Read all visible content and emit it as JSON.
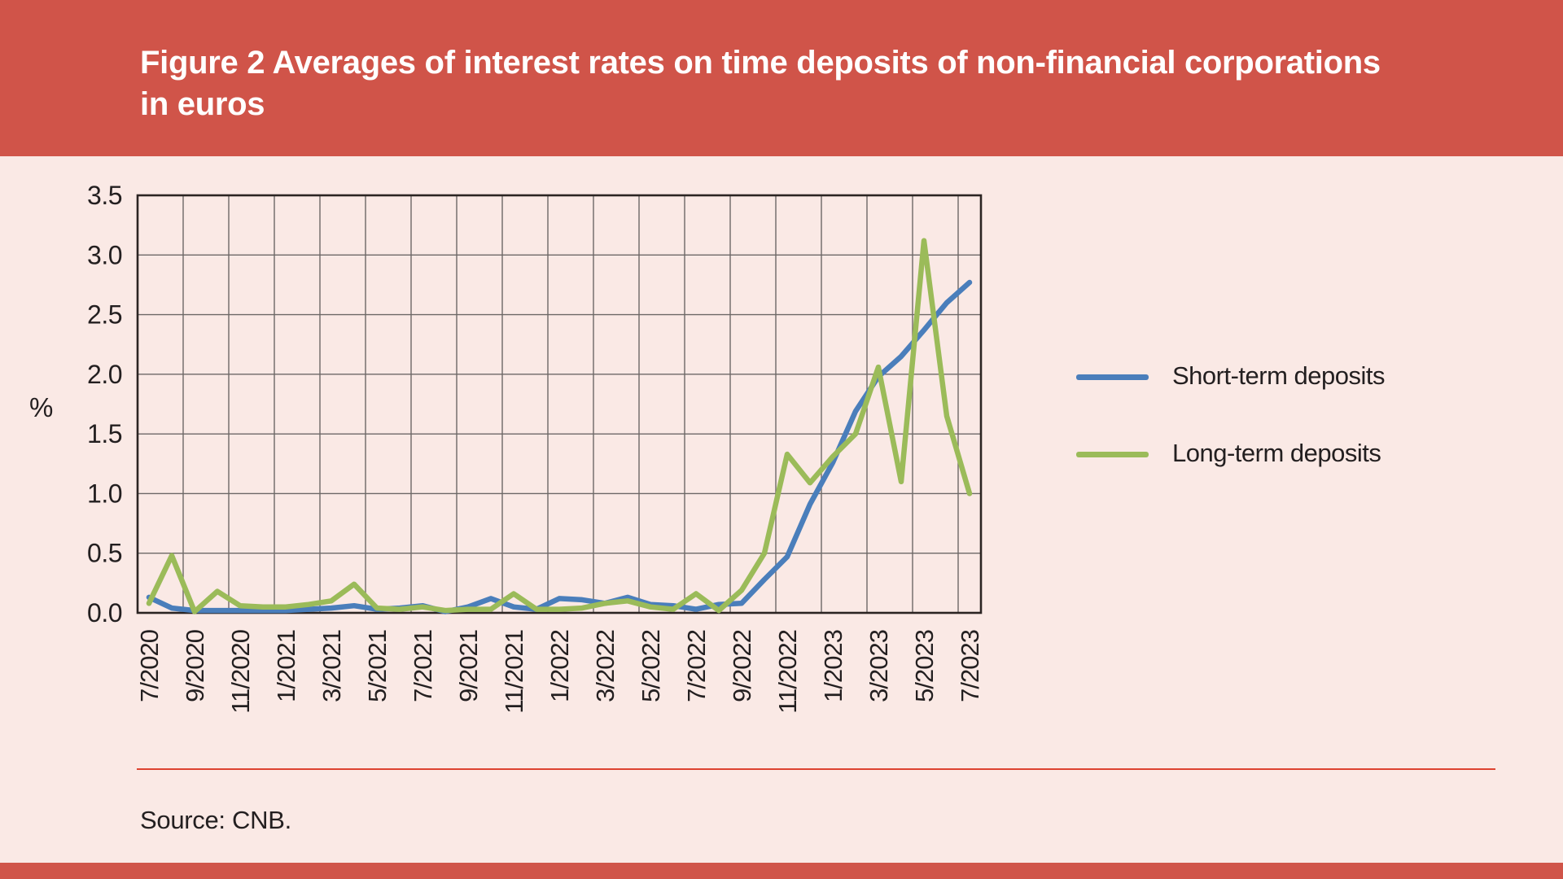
{
  "header": {
    "title_line1": "Figure 2 Averages of interest rates on time deposits of non-financial corporations",
    "title_line2": "in euros"
  },
  "chart_data": {
    "type": "line",
    "title": "Figure 2 Averages of interest rates on time deposits of non-financial corporations in euros",
    "xlabel": "",
    "ylabel": "%",
    "ylim": [
      0,
      3.5
    ],
    "ytick_labels": [
      "0.0",
      "0.5",
      "1.0",
      "1.5",
      "2.0",
      "2.5",
      "3.0",
      "3.5"
    ],
    "xtick_labels": [
      "7/2020",
      "9/2020",
      "11/2020",
      "1/2021",
      "3/2021",
      "5/2021",
      "7/2021",
      "9/2021",
      "11/2021",
      "1/2022",
      "3/2022",
      "5/2022",
      "7/2022",
      "9/2022",
      "11/2022",
      "1/2023",
      "3/2023",
      "5/2023",
      "7/2023"
    ],
    "x": [
      "7/2020",
      "8/2020",
      "9/2020",
      "10/2020",
      "11/2020",
      "12/2020",
      "1/2021",
      "2/2021",
      "3/2021",
      "4/2021",
      "5/2021",
      "6/2021",
      "7/2021",
      "8/2021",
      "9/2021",
      "10/2021",
      "11/2021",
      "12/2021",
      "1/2022",
      "2/2022",
      "3/2022",
      "4/2022",
      "5/2022",
      "6/2022",
      "7/2022",
      "8/2022",
      "9/2022",
      "10/2022",
      "11/2022",
      "12/2022",
      "1/2023",
      "2/2023",
      "3/2023",
      "4/2023",
      "5/2023",
      "6/2023",
      "7/2023"
    ],
    "grid": true,
    "legend_position": "right",
    "series": [
      {
        "name": "Short-term deposits",
        "color": "#4a7ebb",
        "values": [
          0.13,
          0.04,
          0.02,
          0.02,
          0.02,
          0.02,
          0.02,
          0.03,
          0.04,
          0.06,
          0.03,
          0.04,
          0.06,
          0.01,
          0.05,
          0.12,
          0.05,
          0.03,
          0.12,
          0.11,
          0.08,
          0.13,
          0.07,
          0.06,
          0.03,
          0.07,
          0.08,
          0.28,
          0.47,
          0.91,
          1.26,
          1.69,
          1.98,
          2.15,
          2.37,
          2.6,
          2.77
        ]
      },
      {
        "name": "Long-term deposits",
        "color": "#9bbb59",
        "values": [
          0.08,
          0.48,
          0.01,
          0.18,
          0.06,
          0.05,
          0.05,
          0.07,
          0.1,
          0.24,
          0.04,
          0.03,
          0.05,
          0.02,
          0.03,
          0.03,
          0.16,
          0.03,
          0.03,
          0.04,
          0.08,
          0.1,
          0.05,
          0.03,
          0.16,
          0.02,
          0.19,
          0.5,
          1.33,
          1.09,
          1.31,
          1.5,
          2.06,
          1.1,
          3.12,
          1.65,
          1.0
        ]
      }
    ]
  },
  "footer": {
    "source": "Source: CNB."
  },
  "colors": {
    "banner": "#d05449",
    "background": "#fae9e5",
    "separator": "#dd4330",
    "grid": "#6d6867",
    "axis_border": "#2b2422"
  }
}
